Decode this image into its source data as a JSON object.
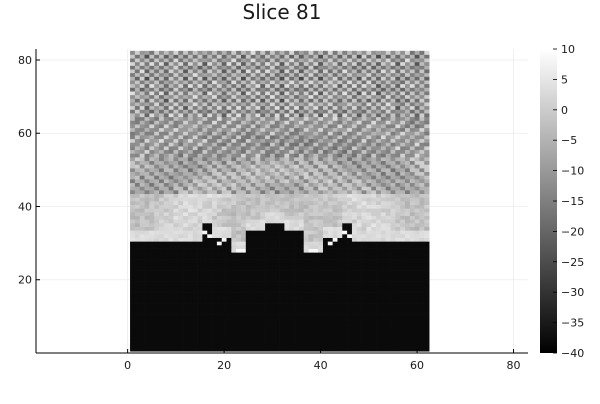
{
  "chart_data": {
    "type": "heatmap",
    "title": "Slice 81",
    "xlabel": "",
    "ylabel": "",
    "xlim": [
      -19,
      83
    ],
    "ylim": [
      0,
      83
    ],
    "x_ticks": [
      0,
      20,
      40,
      60,
      80
    ],
    "y_ticks": [
      20,
      40,
      60,
      80
    ],
    "grid": true,
    "colormap": "grays",
    "image_extent": {
      "x": [
        0.5,
        62.5
      ],
      "y": [
        0.5,
        82.5
      ]
    },
    "colorbar": {
      "min": -40,
      "max": 10,
      "ticks": [
        10,
        5,
        0,
        -5,
        -10,
        -15,
        -20,
        -25,
        -30,
        -35,
        -40
      ],
      "tick_labels": [
        "10",
        "5",
        "0",
        "−5",
        "−10",
        "−15",
        "−20",
        "−25",
        "−30",
        "−35",
        "−40"
      ]
    },
    "regions": {
      "background_value": -38,
      "floor_steps": [
        {
          "x": [
            0.5,
            15.5
          ],
          "top": 30
        },
        {
          "x": [
            15.5,
            17.5
          ],
          "top": 35
        },
        {
          "x": [
            17.5,
            21.5
          ],
          "top": 31
        },
        {
          "x": [
            21.5,
            24.5
          ],
          "top": 27
        },
        {
          "x": [
            24.5,
            28.5
          ],
          "top": 33
        },
        {
          "x": [
            28.5,
            32.5
          ],
          "top": 35
        },
        {
          "x": [
            32.5,
            36.5
          ],
          "top": 33
        },
        {
          "x": [
            36.5,
            40.5
          ],
          "top": 27
        },
        {
          "x": [
            40.5,
            44.5
          ],
          "top": 31
        },
        {
          "x": [
            44.5,
            46.5
          ],
          "top": 35
        },
        {
          "x": [
            46.5,
            62.5
          ],
          "top": 30
        }
      ],
      "edge_bright_cells": [
        {
          "x": 16,
          "y": 33
        },
        {
          "x": 17,
          "y": 32
        },
        {
          "x": 19,
          "y": 30
        },
        {
          "x": 20,
          "y": 31
        },
        {
          "x": 23,
          "y": 28
        },
        {
          "x": 24,
          "y": 28
        },
        {
          "x": 38,
          "y": 28
        },
        {
          "x": 39,
          "y": 28
        },
        {
          "x": 42,
          "y": 30
        },
        {
          "x": 43,
          "y": 31
        },
        {
          "x": 45,
          "y": 33
        },
        {
          "x": 46,
          "y": 32
        }
      ]
    }
  }
}
